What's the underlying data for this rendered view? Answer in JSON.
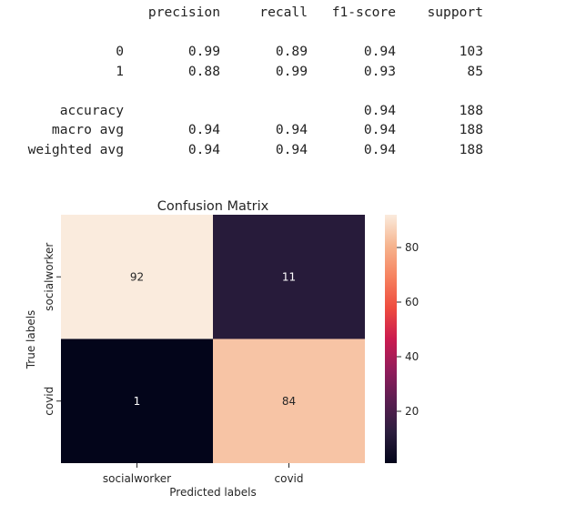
{
  "report": {
    "header": [
      "",
      "precision",
      "recall",
      "f1-score",
      "support"
    ],
    "rows": [
      [
        "0",
        "0.99",
        "0.89",
        "0.94",
        "103"
      ],
      [
        "1",
        "0.88",
        "0.99",
        "0.93",
        "85"
      ]
    ],
    "summary": [
      [
        "accuracy",
        "",
        "",
        "0.94",
        "188"
      ],
      [
        "macro avg",
        "0.94",
        "0.94",
        "0.94",
        "188"
      ],
      [
        "weighted avg",
        "0.94",
        "0.94",
        "0.94",
        "188"
      ]
    ]
  },
  "chart_data": {
    "type": "heatmap",
    "title": "Confusion Matrix",
    "xlabel": "Predicted labels",
    "ylabel": "True labels",
    "x_categories": [
      "socialworker",
      "covid"
    ],
    "y_categories": [
      "socialworker",
      "covid"
    ],
    "values": [
      [
        92,
        11
      ],
      [
        1,
        84
      ]
    ],
    "colormap": "rocket",
    "colorbar": {
      "ticks": [
        20,
        40,
        60,
        80
      ],
      "min": 1,
      "max": 92
    },
    "grid": false
  }
}
